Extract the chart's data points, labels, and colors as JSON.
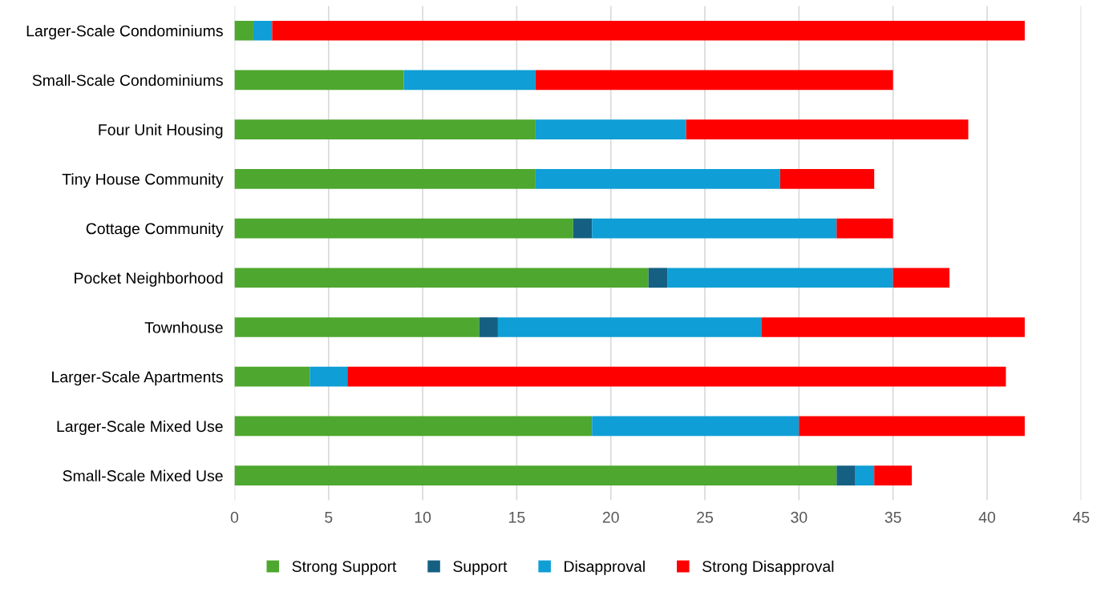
{
  "chart_data": {
    "type": "bar",
    "orientation": "horizontal",
    "stacked": true,
    "categories": [
      "Larger-Scale Condominiums",
      "Small-Scale Condominiums",
      "Four Unit Housing",
      "Tiny House Community",
      "Cottage Community",
      "Pocket Neighborhood",
      "Townhouse",
      "Larger-Scale Apartments",
      "Larger-Scale Mixed Use",
      "Small-Scale Mixed Use"
    ],
    "series": [
      {
        "name": "Strong Support",
        "color": "#4ea72e",
        "values": [
          1,
          9,
          16,
          16,
          18,
          22,
          13,
          4,
          19,
          32
        ]
      },
      {
        "name": "Support",
        "color": "#156082",
        "values": [
          0,
          0,
          0,
          0,
          1,
          1,
          1,
          0,
          0,
          1
        ]
      },
      {
        "name": "Disapproval",
        "color": "#0f9ed5",
        "values": [
          1,
          7,
          8,
          13,
          13,
          12,
          14,
          2,
          11,
          1
        ]
      },
      {
        "name": "Strong Disapproval",
        "color": "#ff0000",
        "values": [
          40,
          19,
          15,
          5,
          3,
          3,
          14,
          35,
          12,
          2
        ]
      }
    ],
    "xlim": [
      0,
      45
    ],
    "xticks": [
      0,
      5,
      10,
      15,
      20,
      25,
      30,
      35,
      40,
      45
    ],
    "grid": "x",
    "legend": "bottom"
  }
}
